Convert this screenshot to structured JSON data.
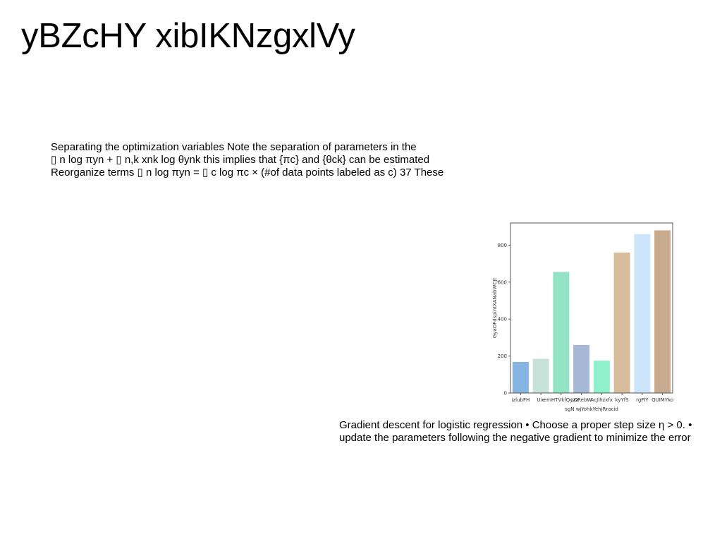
{
  "slide": {
    "title": "yBZcHY xibIKNzgxlVy"
  },
  "paragraph_top": {
    "lines": [
      "Separating the optimization variables Note the separation of parameters in the",
      "▯ n log πyn + ▯ n,k xnk log θynk this implies that {πc} and {θck} can be estimated",
      "Reorganize terms ▯ n log πyn = ▯ c log πc × (#of data points labeled as c) 37 These"
    ]
  },
  "paragraph_bottom": {
    "lines": [
      "Gradient descent for logistic regression • Choose a proper step size η > 0. •",
      "update the parameters following the negative gradient to minimize the error"
    ]
  },
  "chart_data": {
    "type": "bar",
    "categories": [
      "izlubFH",
      "Uie",
      "emHTVkfQyaa",
      "LORebW",
      "AcJlhzxfx",
      "kyYfS",
      "rgFlY",
      "QUIMYko"
    ],
    "values": [
      168,
      185,
      655,
      260,
      175,
      760,
      860,
      880
    ],
    "colors": [
      "#85b5e3",
      "#c7e2d8",
      "#93e3c6",
      "#a7b7d6",
      "#8ff0cd",
      "#d8bd9d",
      "#cde5fb",
      "#c8aa8f"
    ],
    "xlabel": "sgN wjYohkYehjRracid",
    "ylabel": "GyaOFdspintXANabWCJt",
    "ylim": [
      0,
      920
    ],
    "yticks": [
      0,
      200,
      400,
      600,
      800
    ],
    "grid": false
  }
}
